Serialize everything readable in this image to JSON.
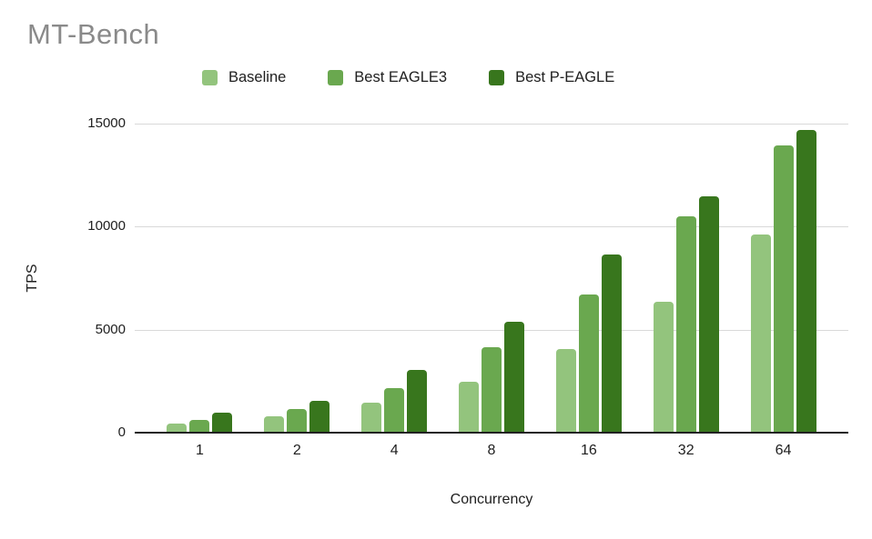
{
  "title": "MT-Bench",
  "legend": {
    "items": [
      {
        "label": "Baseline",
        "color": "#93c47d"
      },
      {
        "label": "Best EAGLE3",
        "color": "#6aa84f"
      },
      {
        "label": "Best P-EAGLE",
        "color": "#38761d"
      }
    ]
  },
  "chart_data": {
    "type": "bar",
    "title": "MT-Bench",
    "xlabel": "Concurrency",
    "ylabel": "TPS",
    "categories": [
      "1",
      "2",
      "4",
      "8",
      "16",
      "32",
      "64"
    ],
    "series": [
      {
        "name": "Baseline",
        "color": "#93c47d",
        "values": [
          460,
          780,
          1450,
          2450,
          4050,
          6350,
          9600
        ]
      },
      {
        "name": "Best EAGLE3",
        "color": "#6aa84f",
        "values": [
          600,
          1150,
          2150,
          4150,
          6700,
          10500,
          13950
        ]
      },
      {
        "name": "Best P-EAGLE",
        "color": "#38761d",
        "values": [
          980,
          1560,
          3030,
          5400,
          8650,
          11450,
          14700
        ]
      }
    ],
    "y_ticks": [
      0,
      5000,
      10000,
      15000
    ],
    "y_tick_labels": [
      "0",
      "5000",
      "10000",
      "15000"
    ],
    "ylim": [
      0,
      15000
    ],
    "grid": true,
    "legend_position": "top"
  },
  "colors": {
    "gridline": "#d9d9d9",
    "axis_line": "#212121",
    "title_text": "#8a8a8a",
    "label_text": "#202020",
    "background": "#ffffff"
  }
}
